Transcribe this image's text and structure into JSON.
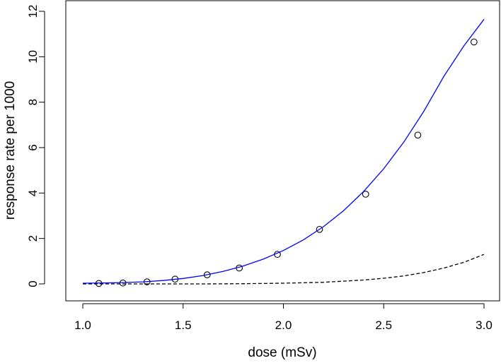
{
  "chart_data": {
    "type": "line",
    "title": "",
    "xlabel": "dose (mSv)",
    "ylabel": "response rate per 1000",
    "xlim": [
      1.0,
      3.0
    ],
    "ylim": [
      0,
      12
    ],
    "xticks": [
      "1.0",
      "1.5",
      "2.0",
      "2.5",
      "3.0"
    ],
    "yticks": [
      "0",
      "2",
      "4",
      "6",
      "8",
      "10",
      "12"
    ],
    "grid": false,
    "legend": "none",
    "colors": {
      "fit": "#0000ff",
      "baseline": "#000000",
      "points": "#000000"
    },
    "series": [
      {
        "style": "points-open-circle",
        "x": [
          1.08,
          1.2,
          1.32,
          1.46,
          1.62,
          1.78,
          1.97,
          2.18,
          2.41,
          2.67,
          2.95
        ],
        "y": [
          0.02,
          0.04,
          0.09,
          0.21,
          0.4,
          0.7,
          1.3,
          2.4,
          3.95,
          6.55,
          10.65
        ]
      },
      {
        "style": "solid-line-blue",
        "x": [
          1.0,
          1.1,
          1.2,
          1.3,
          1.4,
          1.5,
          1.6,
          1.7,
          1.8,
          1.9,
          2.0,
          2.1,
          2.2,
          2.3,
          2.4,
          2.5,
          2.6,
          2.7,
          2.8,
          2.9,
          3.0
        ],
        "y": [
          0.03,
          0.04,
          0.06,
          0.09,
          0.15,
          0.24,
          0.37,
          0.55,
          0.79,
          1.09,
          1.47,
          1.94,
          2.52,
          3.22,
          4.07,
          5.07,
          6.24,
          7.6,
          9.14,
          10.48,
          11.65
        ]
      },
      {
        "style": "dashed-line-black",
        "x": [
          1.0,
          1.2,
          1.4,
          1.6,
          1.8,
          2.0,
          2.2,
          2.4,
          2.5,
          2.6,
          2.7,
          2.8,
          2.9,
          3.0
        ],
        "y": [
          0.0,
          0.0,
          0.0,
          0.0,
          0.01,
          0.03,
          0.07,
          0.17,
          0.25,
          0.35,
          0.5,
          0.7,
          0.95,
          1.3
        ]
      }
    ]
  }
}
